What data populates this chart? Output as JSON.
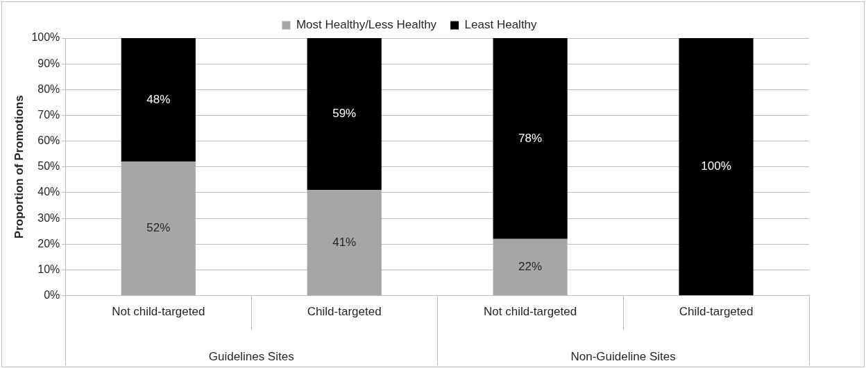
{
  "chart_data": {
    "type": "bar",
    "stacked": true,
    "ylabel": "Proportion of Promotions",
    "categories": [
      "Not child-targeted",
      "Child-targeted",
      "Not child-targeted",
      "Child-targeted"
    ],
    "annotations": [
      "Guidelines Sites",
      "Non-Guideline Sites"
    ],
    "series": [
      {
        "name": "Most Healthy/Less Healthy",
        "color": "#a6a6a6",
        "values": [
          52,
          41,
          22,
          0
        ],
        "value_labels": [
          "52%",
          "41%",
          "22%",
          null
        ]
      },
      {
        "name": "Least Healthy",
        "color": "#000000",
        "values": [
          48,
          59,
          78,
          100
        ],
        "value_labels": [
          "48%",
          "59%",
          "78%",
          "100%"
        ]
      }
    ],
    "ylim": [
      0,
      100
    ],
    "yticks": [
      {
        "value": 0,
        "label": "0%"
      },
      {
        "value": 10,
        "label": "10%"
      },
      {
        "value": 20,
        "label": "20%"
      },
      {
        "value": 30,
        "label": "30%"
      },
      {
        "value": 40,
        "label": "40%"
      },
      {
        "value": 50,
        "label": "50%"
      },
      {
        "value": 60,
        "label": "60%"
      },
      {
        "value": 70,
        "label": "70%"
      },
      {
        "value": 80,
        "label": "80%"
      },
      {
        "value": 90,
        "label": "90%"
      },
      {
        "value": 100,
        "label": "100%"
      }
    ],
    "grid": "y",
    "legend": "top"
  }
}
